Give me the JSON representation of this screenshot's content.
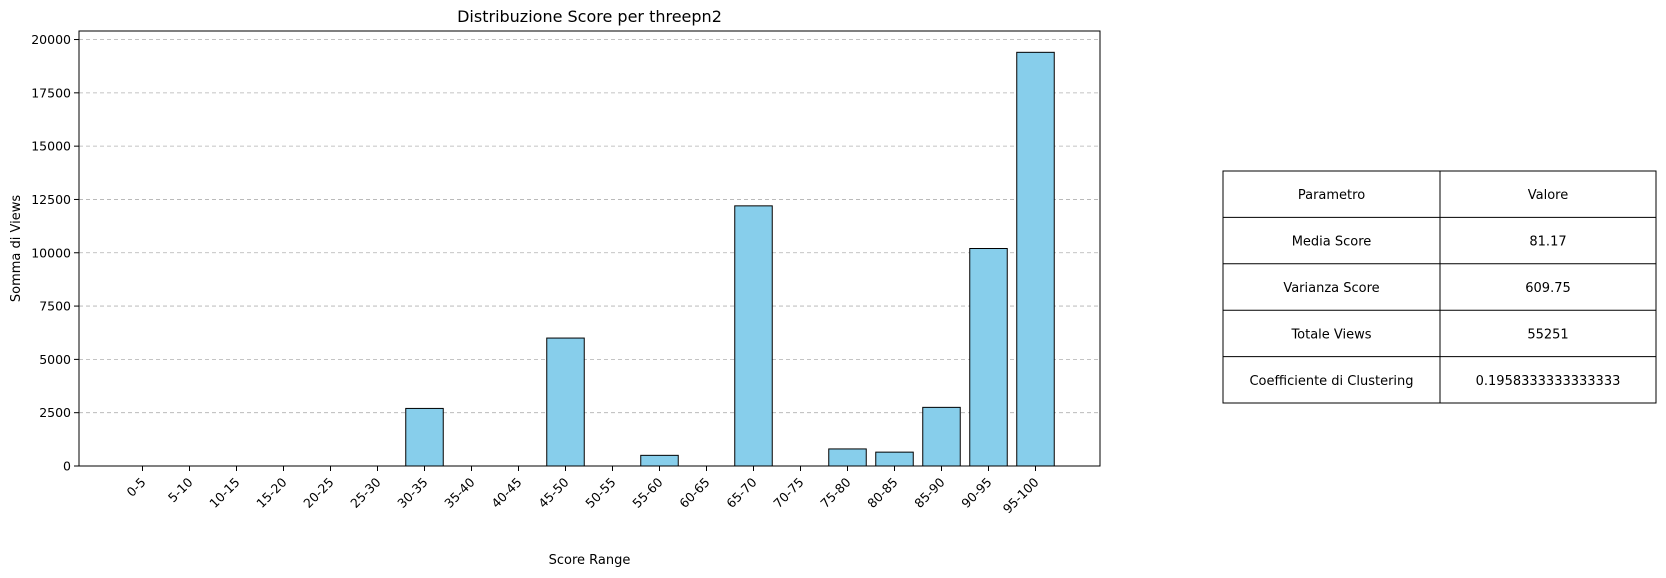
{
  "chart_data": {
    "type": "bar",
    "title": "Distribuzione Score per threepn2",
    "xlabel": "Score Range",
    "ylabel": "Somma di Views",
    "categories": [
      "0-5",
      "5-10",
      "10-15",
      "15-20",
      "20-25",
      "25-30",
      "30-35",
      "35-40",
      "40-45",
      "45-50",
      "50-55",
      "55-60",
      "60-65",
      "65-70",
      "70-75",
      "75-80",
      "80-85",
      "85-90",
      "90-95",
      "95-100"
    ],
    "values": [
      0,
      0,
      0,
      0,
      0,
      0,
      2700,
      0,
      0,
      6000,
      0,
      500,
      0,
      12200,
      0,
      800,
      650,
      2750,
      10200,
      19400
    ],
    "ylim": [
      0,
      20400
    ],
    "yticks": [
      0,
      2500,
      5000,
      7500,
      10000,
      12500,
      15000,
      17500,
      20000
    ],
    "grid": "y-dashed",
    "bar_color": "#87ceeb",
    "edge_color": "#000000"
  },
  "table": {
    "header": [
      "Parametro",
      "Valore"
    ],
    "rows": [
      [
        "Media Score",
        "81.17"
      ],
      [
        "Varianza Score",
        "609.75"
      ],
      [
        "Totale Views",
        "55251"
      ],
      [
        "Coefficiente di Clustering",
        "0.1958333333333333"
      ]
    ]
  }
}
